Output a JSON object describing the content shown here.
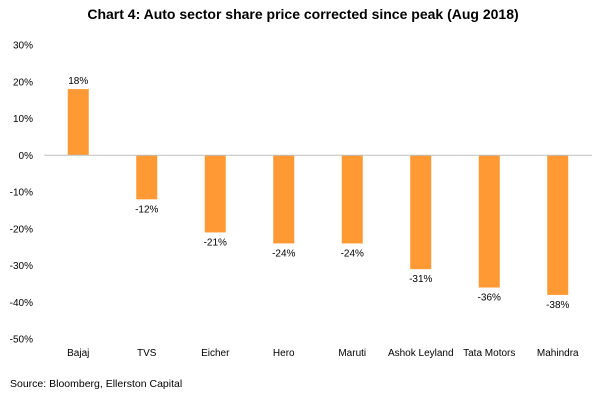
{
  "chart_data": {
    "type": "bar",
    "title": "Chart 4: Auto sector share price corrected since peak (Aug 2018)",
    "xlabel": "",
    "ylabel": "",
    "categories": [
      "Bajaj",
      "TVS",
      "Eicher",
      "Hero",
      "Maruti",
      "Ashok Leyland",
      "Tata Motors",
      "Mahindra"
    ],
    "values": [
      18,
      -12,
      -21,
      -24,
      -24,
      -31,
      -36,
      -38
    ],
    "data_labels": [
      "18%",
      "-12%",
      "-21%",
      "-24%",
      "-24%",
      "-31%",
      "-36%",
      "-38%"
    ],
    "ylim": [
      -50,
      30
    ],
    "yticks": [
      30,
      20,
      10,
      0,
      -10,
      -20,
      -30,
      -40,
      -50
    ],
    "ytick_labels": [
      "30%",
      "20%",
      "10%",
      "0%",
      "-10%",
      "-20%",
      "-30%",
      "-40%",
      "-50%"
    ],
    "bar_color": "#FF9933",
    "grid": false,
    "legend": "none"
  },
  "footer": {
    "source": "Source:  Bloomberg,  Ellerston Capital"
  }
}
